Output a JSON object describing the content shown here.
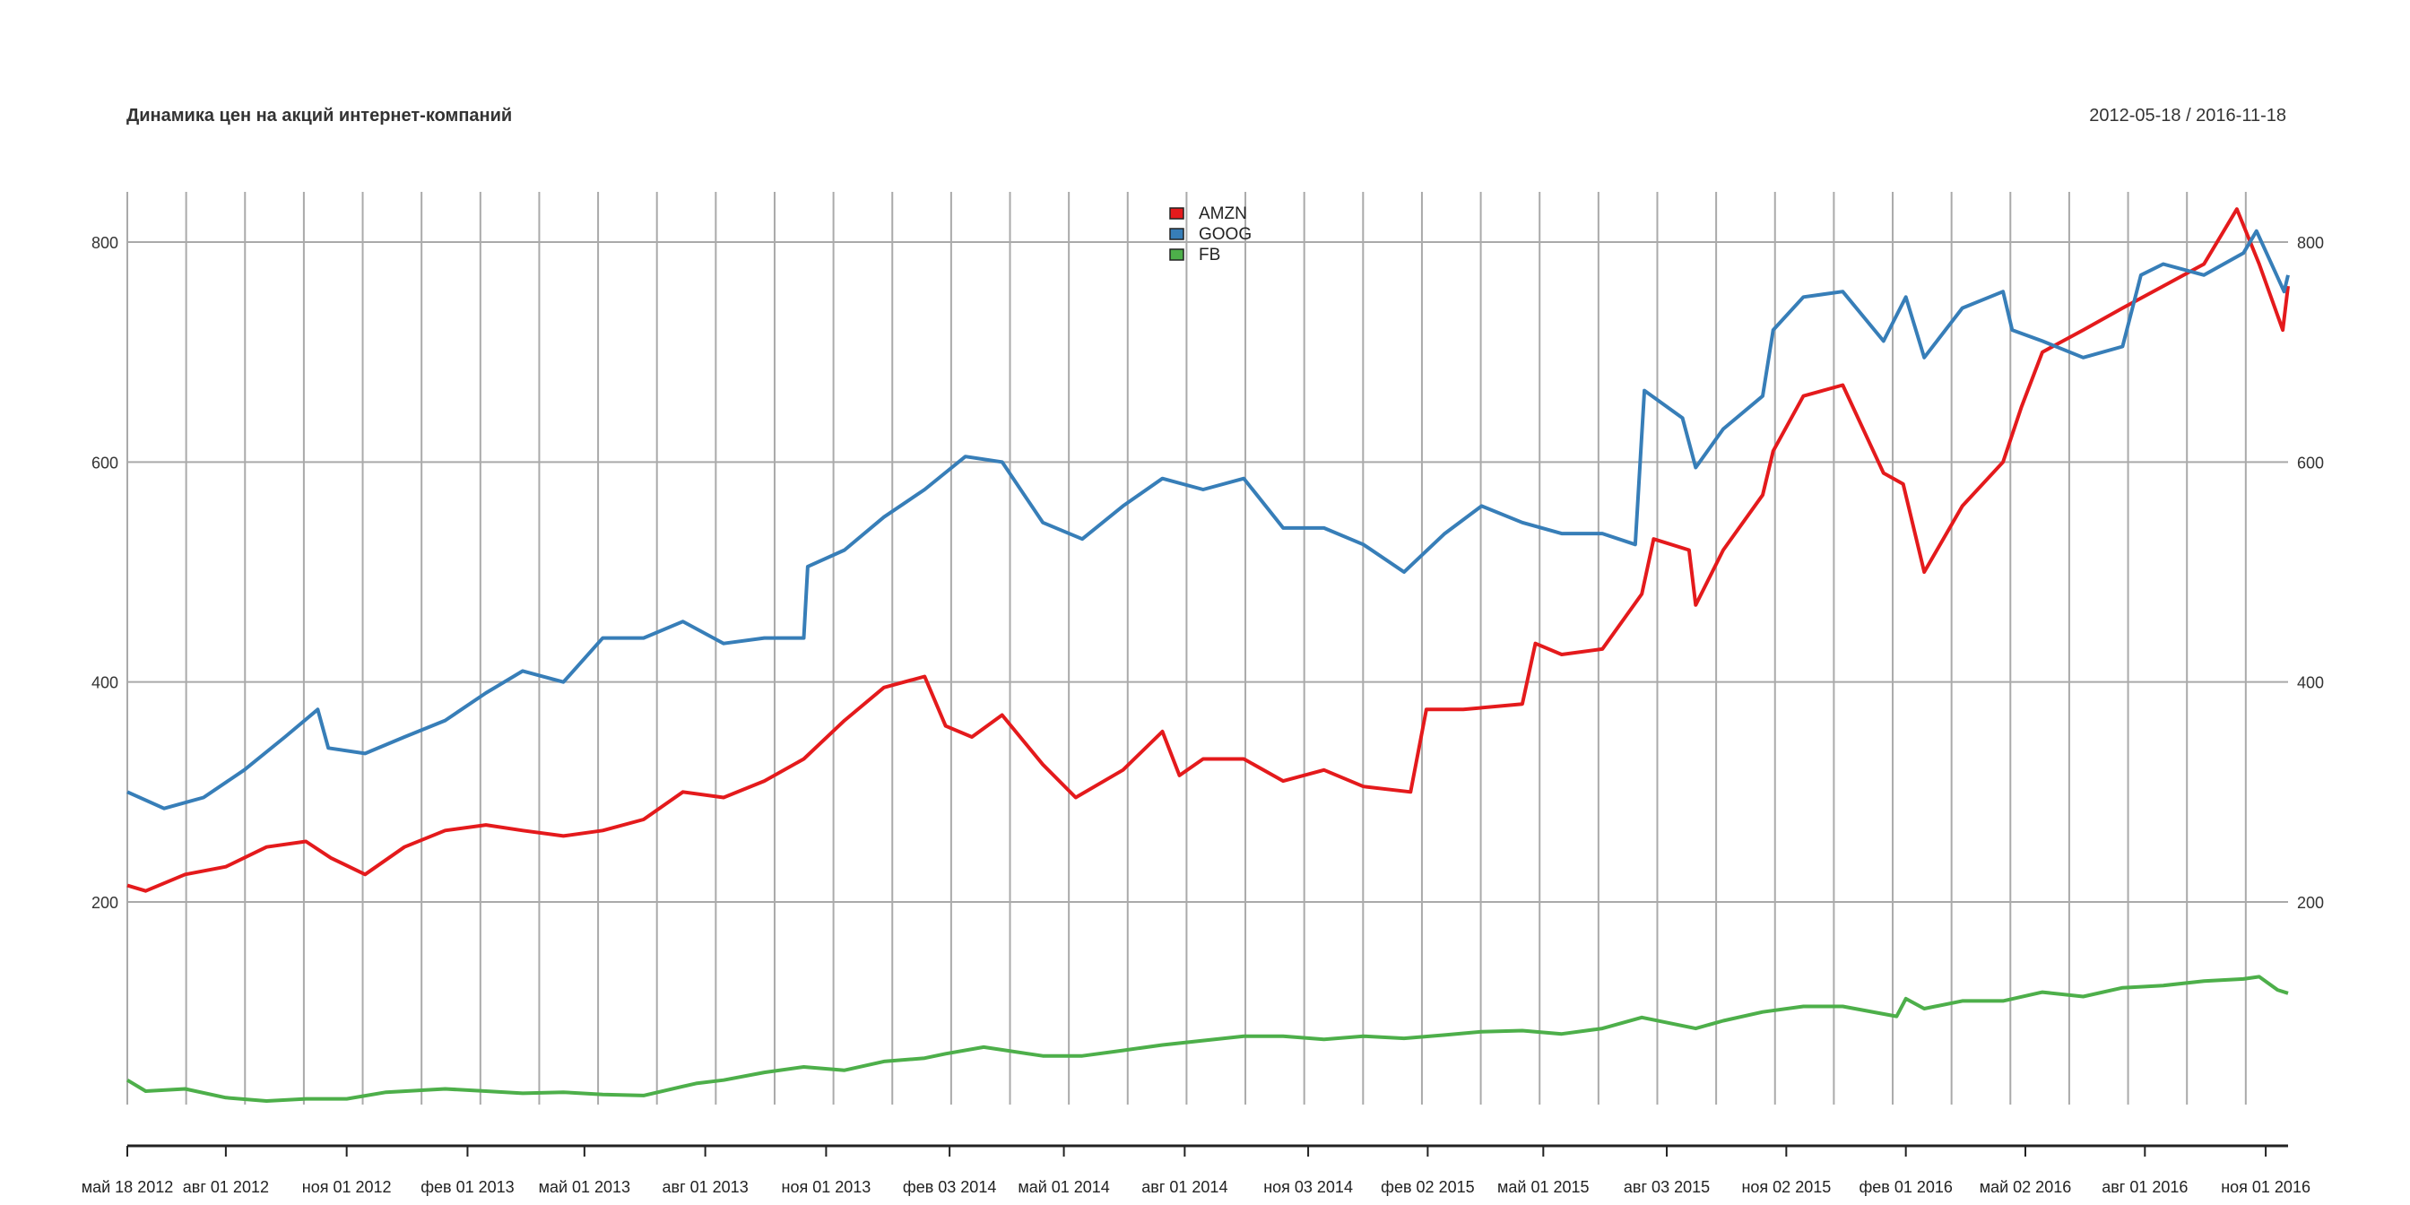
{
  "chart_data": {
    "type": "line",
    "title": "Динамика цен на акций интернет-компаний",
    "date_range": "2012-05-18 / 2016-11-18",
    "x_start": "2012-05-18",
    "x_end": "2016-11-18",
    "ylim": [
      0,
      850
    ],
    "y_ticks": [
      200,
      400,
      600,
      800
    ],
    "grid": true,
    "legend_position": "top-center",
    "x_tick_labels": [
      {
        "date": "2012-05-18",
        "label": "май 18 2012"
      },
      {
        "date": "2012-08-01",
        "label": "авг 01 2012"
      },
      {
        "date": "2012-11-01",
        "label": "ноя 01 2012"
      },
      {
        "date": "2013-02-01",
        "label": "фев 01 2013"
      },
      {
        "date": "2013-05-01",
        "label": "май 01 2013"
      },
      {
        "date": "2013-08-01",
        "label": "авг 01 2013"
      },
      {
        "date": "2013-11-01",
        "label": "ноя 01 2013"
      },
      {
        "date": "2014-02-03",
        "label": "фев 03 2014"
      },
      {
        "date": "2014-05-01",
        "label": "май 01 2014"
      },
      {
        "date": "2014-08-01",
        "label": "авг 01 2014"
      },
      {
        "date": "2014-11-03",
        "label": "ноя 03 2014"
      },
      {
        "date": "2015-02-02",
        "label": "фев 02 2015"
      },
      {
        "date": "2015-05-01",
        "label": "май 01 2015"
      },
      {
        "date": "2015-08-03",
        "label": "авг 03 2015"
      },
      {
        "date": "2015-11-02",
        "label": "ноя 02 2015"
      },
      {
        "date": "2016-02-01",
        "label": "фев 01 2016"
      },
      {
        "date": "2016-05-02",
        "label": "май 02 2016"
      },
      {
        "date": "2016-08-01",
        "label": "авг 01 2016"
      },
      {
        "date": "2016-11-01",
        "label": "ноя 01 2016"
      }
    ],
    "series": [
      {
        "name": "AMZN",
        "color": "#e41a1c",
        "points": [
          [
            "2012-05-18",
            215
          ],
          [
            "2012-06-01",
            210
          ],
          [
            "2012-07-01",
            225
          ],
          [
            "2012-08-01",
            232
          ],
          [
            "2012-09-01",
            250
          ],
          [
            "2012-10-01",
            255
          ],
          [
            "2012-10-20",
            240
          ],
          [
            "2012-11-15",
            225
          ],
          [
            "2012-12-15",
            250
          ],
          [
            "2013-01-15",
            265
          ],
          [
            "2013-02-15",
            270
          ],
          [
            "2013-03-15",
            265
          ],
          [
            "2013-04-15",
            260
          ],
          [
            "2013-05-15",
            265
          ],
          [
            "2013-06-15",
            275
          ],
          [
            "2013-07-15",
            300
          ],
          [
            "2013-08-15",
            295
          ],
          [
            "2013-09-15",
            310
          ],
          [
            "2013-10-15",
            330
          ],
          [
            "2013-11-15",
            365
          ],
          [
            "2013-12-15",
            395
          ],
          [
            "2014-01-15",
            405
          ],
          [
            "2014-01-31",
            360
          ],
          [
            "2014-02-20",
            350
          ],
          [
            "2014-03-15",
            370
          ],
          [
            "2014-04-15",
            325
          ],
          [
            "2014-05-10",
            295
          ],
          [
            "2014-06-15",
            320
          ],
          [
            "2014-07-15",
            355
          ],
          [
            "2014-07-28",
            315
          ],
          [
            "2014-08-15",
            330
          ],
          [
            "2014-09-15",
            330
          ],
          [
            "2014-10-15",
            310
          ],
          [
            "2014-11-15",
            320
          ],
          [
            "2014-12-15",
            305
          ],
          [
            "2015-01-20",
            300
          ],
          [
            "2015-02-01",
            375
          ],
          [
            "2015-03-01",
            375
          ],
          [
            "2015-04-15",
            380
          ],
          [
            "2015-04-25",
            435
          ],
          [
            "2015-05-15",
            425
          ],
          [
            "2015-06-15",
            430
          ],
          [
            "2015-07-15",
            480
          ],
          [
            "2015-07-24",
            530
          ],
          [
            "2015-08-20",
            520
          ],
          [
            "2015-08-25",
            470
          ],
          [
            "2015-09-15",
            520
          ],
          [
            "2015-10-15",
            570
          ],
          [
            "2015-10-23",
            610
          ],
          [
            "2015-11-15",
            660
          ],
          [
            "2015-12-15",
            670
          ],
          [
            "2016-01-15",
            590
          ],
          [
            "2016-01-30",
            580
          ],
          [
            "2016-02-15",
            500
          ],
          [
            "2016-03-15",
            560
          ],
          [
            "2016-04-15",
            600
          ],
          [
            "2016-04-29",
            650
          ],
          [
            "2016-05-15",
            700
          ],
          [
            "2016-06-15",
            720
          ],
          [
            "2016-07-15",
            740
          ],
          [
            "2016-08-15",
            760
          ],
          [
            "2016-09-15",
            780
          ],
          [
            "2016-10-10",
            830
          ],
          [
            "2016-10-27",
            780
          ],
          [
            "2016-11-14",
            720
          ],
          [
            "2016-11-18",
            760
          ]
        ]
      },
      {
        "name": "GOOG",
        "color": "#377eb8",
        "points": [
          [
            "2012-05-18",
            300
          ],
          [
            "2012-06-15",
            285
          ],
          [
            "2012-07-15",
            295
          ],
          [
            "2012-08-15",
            320
          ],
          [
            "2012-09-15",
            350
          ],
          [
            "2012-10-10",
            375
          ],
          [
            "2012-10-18",
            340
          ],
          [
            "2012-11-15",
            335
          ],
          [
            "2012-12-15",
            350
          ],
          [
            "2013-01-15",
            365
          ],
          [
            "2013-02-15",
            390
          ],
          [
            "2013-03-15",
            410
          ],
          [
            "2013-04-15",
            400
          ],
          [
            "2013-05-15",
            440
          ],
          [
            "2013-06-15",
            440
          ],
          [
            "2013-07-15",
            455
          ],
          [
            "2013-08-15",
            435
          ],
          [
            "2013-09-15",
            440
          ],
          [
            "2013-10-15",
            440
          ],
          [
            "2013-10-18",
            505
          ],
          [
            "2013-11-15",
            520
          ],
          [
            "2013-12-15",
            550
          ],
          [
            "2014-01-15",
            575
          ],
          [
            "2014-02-15",
            605
          ],
          [
            "2014-03-15",
            600
          ],
          [
            "2014-04-15",
            545
          ],
          [
            "2014-05-15",
            530
          ],
          [
            "2014-06-15",
            560
          ],
          [
            "2014-07-15",
            585
          ],
          [
            "2014-08-15",
            575
          ],
          [
            "2014-09-15",
            585
          ],
          [
            "2014-10-15",
            540
          ],
          [
            "2014-11-15",
            540
          ],
          [
            "2014-12-15",
            525
          ],
          [
            "2015-01-15",
            500
          ],
          [
            "2015-02-15",
            535
          ],
          [
            "2015-03-15",
            560
          ],
          [
            "2015-04-15",
            545
          ],
          [
            "2015-05-15",
            535
          ],
          [
            "2015-06-15",
            535
          ],
          [
            "2015-07-10",
            525
          ],
          [
            "2015-07-17",
            665
          ],
          [
            "2015-08-15",
            640
          ],
          [
            "2015-08-25",
            595
          ],
          [
            "2015-09-15",
            630
          ],
          [
            "2015-10-15",
            660
          ],
          [
            "2015-10-23",
            720
          ],
          [
            "2015-11-15",
            750
          ],
          [
            "2015-12-15",
            755
          ],
          [
            "2016-01-15",
            710
          ],
          [
            "2016-02-01",
            750
          ],
          [
            "2016-02-15",
            695
          ],
          [
            "2016-03-15",
            740
          ],
          [
            "2016-04-15",
            755
          ],
          [
            "2016-04-22",
            720
          ],
          [
            "2016-05-15",
            710
          ],
          [
            "2016-06-15",
            695
          ],
          [
            "2016-07-15",
            705
          ],
          [
            "2016-07-29",
            770
          ],
          [
            "2016-08-15",
            780
          ],
          [
            "2016-09-15",
            770
          ],
          [
            "2016-10-15",
            790
          ],
          [
            "2016-10-25",
            810
          ],
          [
            "2016-11-15",
            755
          ],
          [
            "2016-11-18",
            770
          ]
        ]
      },
      {
        "name": "FB",
        "color": "#4daf4a",
        "points": [
          [
            "2012-05-18",
            38
          ],
          [
            "2012-06-01",
            28
          ],
          [
            "2012-07-01",
            30
          ],
          [
            "2012-08-01",
            22
          ],
          [
            "2012-09-01",
            19
          ],
          [
            "2012-10-01",
            21
          ],
          [
            "2012-11-01",
            21
          ],
          [
            "2012-12-01",
            27
          ],
          [
            "2013-01-15",
            30
          ],
          [
            "2013-02-15",
            28
          ],
          [
            "2013-03-15",
            26
          ],
          [
            "2013-04-15",
            27
          ],
          [
            "2013-05-15",
            25
          ],
          [
            "2013-06-15",
            24
          ],
          [
            "2013-07-25",
            35
          ],
          [
            "2013-08-15",
            38
          ],
          [
            "2013-09-15",
            45
          ],
          [
            "2013-10-15",
            50
          ],
          [
            "2013-11-15",
            47
          ],
          [
            "2013-12-15",
            55
          ],
          [
            "2014-01-15",
            58
          ],
          [
            "2014-01-31",
            62
          ],
          [
            "2014-03-01",
            68
          ],
          [
            "2014-04-15",
            60
          ],
          [
            "2014-05-15",
            60
          ],
          [
            "2014-06-15",
            65
          ],
          [
            "2014-07-15",
            70
          ],
          [
            "2014-08-15",
            74
          ],
          [
            "2014-09-15",
            78
          ],
          [
            "2014-10-15",
            78
          ],
          [
            "2014-11-15",
            75
          ],
          [
            "2014-12-15",
            78
          ],
          [
            "2015-01-15",
            76
          ],
          [
            "2015-02-15",
            79
          ],
          [
            "2015-03-15",
            82
          ],
          [
            "2015-04-15",
            83
          ],
          [
            "2015-05-15",
            80
          ],
          [
            "2015-06-15",
            85
          ],
          [
            "2015-07-15",
            95
          ],
          [
            "2015-08-25",
            85
          ],
          [
            "2015-09-15",
            92
          ],
          [
            "2015-10-15",
            100
          ],
          [
            "2015-11-15",
            105
          ],
          [
            "2015-12-15",
            105
          ],
          [
            "2016-01-25",
            96
          ],
          [
            "2016-02-01",
            112
          ],
          [
            "2016-02-15",
            103
          ],
          [
            "2016-03-15",
            110
          ],
          [
            "2016-04-15",
            110
          ],
          [
            "2016-05-15",
            118
          ],
          [
            "2016-06-15",
            114
          ],
          [
            "2016-07-15",
            122
          ],
          [
            "2016-08-15",
            124
          ],
          [
            "2016-09-15",
            128
          ],
          [
            "2016-10-15",
            130
          ],
          [
            "2016-10-27",
            132
          ],
          [
            "2016-11-10",
            120
          ],
          [
            "2016-11-18",
            117
          ]
        ]
      }
    ]
  }
}
